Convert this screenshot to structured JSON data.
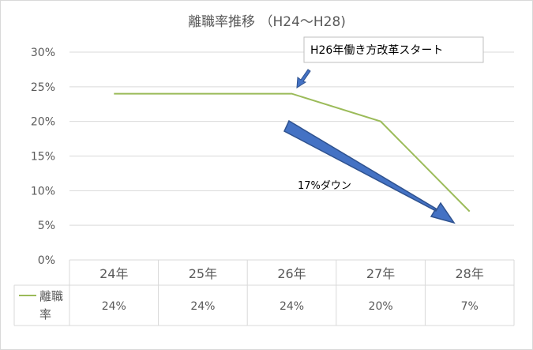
{
  "chart_data": {
    "type": "line",
    "title": "離職率推移 （H24～H28)",
    "categories": [
      "24年",
      "25年",
      "26年",
      "27年",
      "28年"
    ],
    "series": [
      {
        "name": "離職率",
        "values": [
          24,
          24,
          24,
          20,
          7
        ]
      }
    ],
    "ylim": [
      0,
      30
    ],
    "yticks": [
      "0%",
      "5%",
      "10%",
      "15%",
      "20%",
      "25%",
      "30%"
    ],
    "ytick_values": [
      0,
      5,
      10,
      15,
      20,
      25,
      30
    ],
    "data_table": [
      "24%",
      "24%",
      "24%",
      "20%",
      "7%"
    ],
    "grid": true,
    "legend": "data-table",
    "annotations": {
      "callout": "H26年働き方改革スタート",
      "arrow_label": "17%ダウン"
    },
    "colors": {
      "line": "#9bbb59",
      "arrow": "#4472c4",
      "arrow_edge": "#2f528f",
      "grid": "#d9d9d9",
      "text": "#595959"
    }
  }
}
